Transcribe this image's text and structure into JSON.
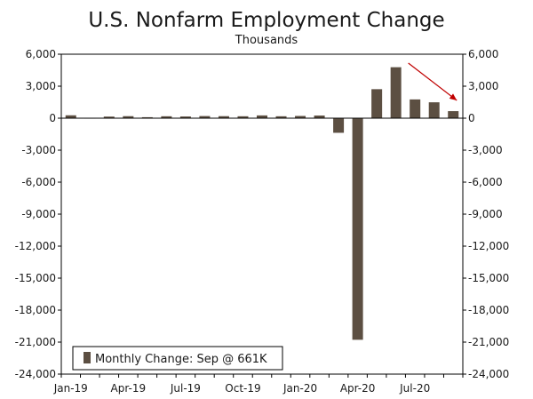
{
  "chart_data": {
    "type": "bar",
    "title": "U.S. Nonfarm Employment Change",
    "subtitle": "Thousands",
    "xlabel": "",
    "ylabel": "",
    "ylim": [
      -24000,
      6000
    ],
    "y_ticks": [
      6000,
      3000,
      0,
      -3000,
      -6000,
      -9000,
      -12000,
      -15000,
      -18000,
      -21000,
      -24000
    ],
    "y_tick_labels": [
      "6,000",
      "3,000",
      "0",
      "-3,000",
      "-6,000",
      "-9,000",
      "-12,000",
      "-15,000",
      "-18,000",
      "-21,000",
      "-24,000"
    ],
    "secondary_y_axis": true,
    "categories": [
      "Jan-19",
      "Feb-19",
      "Mar-19",
      "Apr-19",
      "May-19",
      "Jun-19",
      "Jul-19",
      "Aug-19",
      "Sep-19",
      "Oct-19",
      "Nov-19",
      "Dec-19",
      "Jan-20",
      "Feb-20",
      "Mar-20",
      "Apr-20",
      "May-20",
      "Jun-20",
      "Jul-20",
      "Aug-20",
      "Sep-20"
    ],
    "x_tick_labels": [
      "Jan-19",
      "Apr-19",
      "Jul-19",
      "Oct-19",
      "Jan-20",
      "Apr-20",
      "Jul-20"
    ],
    "series": [
      {
        "name": "Monthly Change: Sep @ 661K",
        "color": "#5c4f42",
        "values": [
          270,
          40,
          150,
          190,
          90,
          180,
          160,
          200,
          190,
          180,
          260,
          180,
          210,
          250,
          -1370,
          -20780,
          2720,
          4780,
          1760,
          1490,
          661
        ]
      }
    ],
    "legend": {
      "label": "Monthly Change: Sep @ 661K",
      "position": "bottom-left"
    },
    "annotation": {
      "type": "arrow",
      "color": "#c00000",
      "description": "downward trend from Jun-20 to Sep-20"
    },
    "grid": false
  }
}
